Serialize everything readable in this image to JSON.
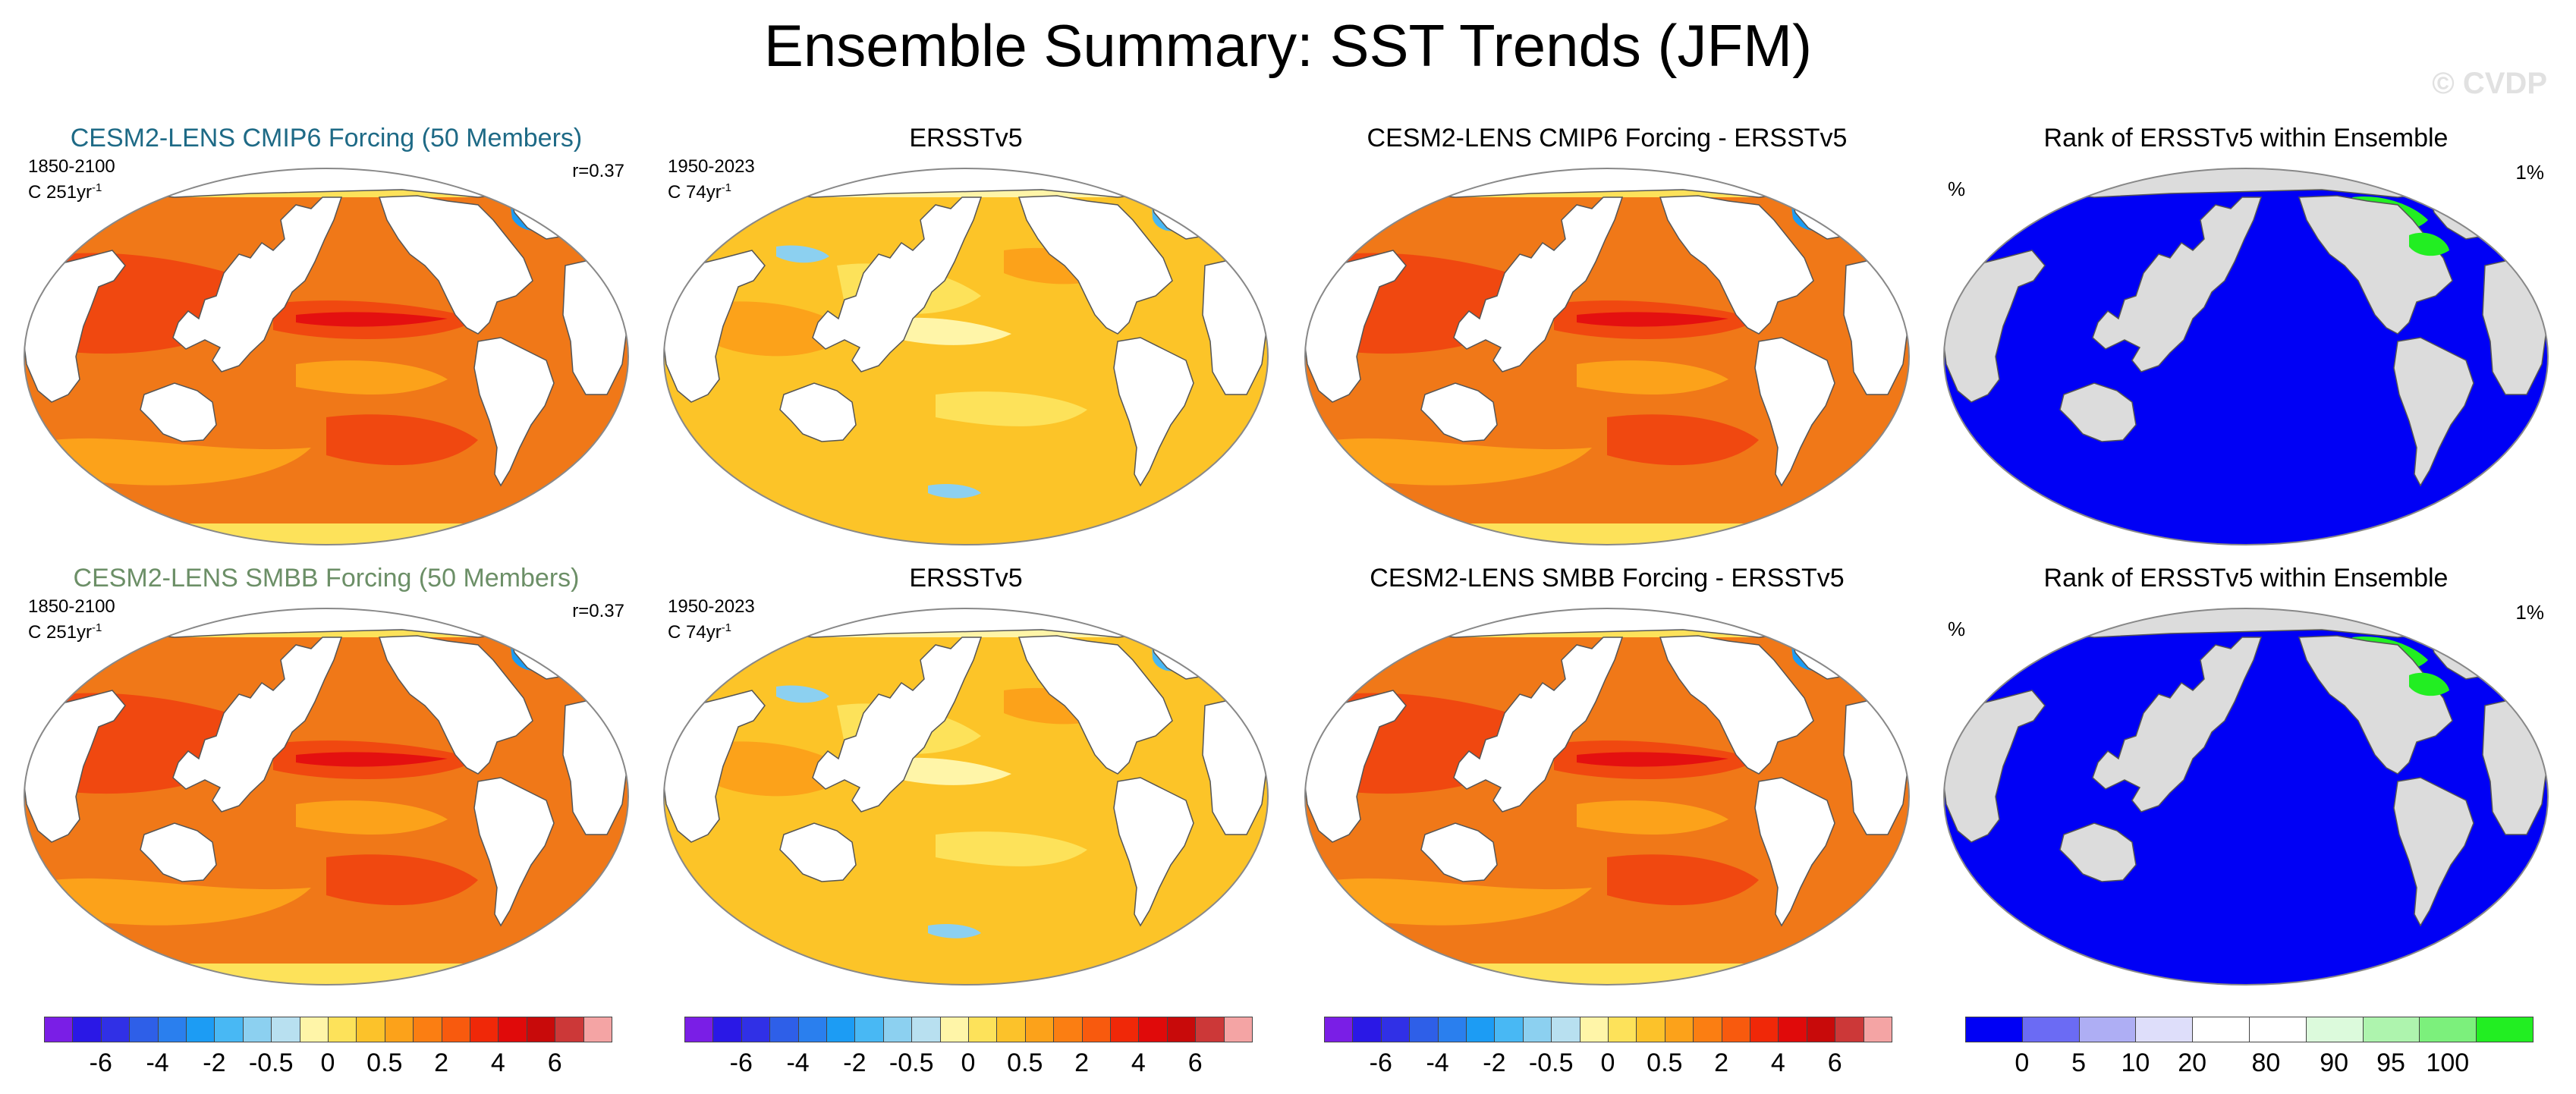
{
  "title": "Ensemble Summary: SST Trends (JFM)",
  "watermark": "© CVDP",
  "colors": {
    "cmip6_title": "#1e6a86",
    "smbb_title": "#6c8f67",
    "land": "#ffffff",
    "rank_land": "#dcdcdc",
    "rank_ocean": "#0000f5",
    "rank_high": "#22ee22"
  },
  "panels": [
    {
      "id": "cmip6-ens",
      "title": "CESM2-LENS CMIP6 Forcing (50 Members)",
      "years": "1850-2100",
      "units": "C 251yr",
      "sup": "-1",
      "r": "r=0.37",
      "kind": "warm"
    },
    {
      "id": "ersst-1",
      "title": "ERSSTv5",
      "years": "1950-2023",
      "units": "C 74yr",
      "sup": "-1",
      "kind": "obs"
    },
    {
      "id": "cmip6-diff",
      "title": "CESM2-LENS CMIP6 Forcing - ERSSTv5",
      "kind": "warm"
    },
    {
      "id": "rank-1",
      "title": "Rank of ERSSTv5 within Ensemble",
      "pct_left": "%",
      "pct_right": "1%",
      "kind": "rank"
    },
    {
      "id": "smbb-ens",
      "title": "CESM2-LENS SMBB Forcing (50 Members)",
      "years": "1850-2100",
      "units": "C 251yr",
      "sup": "-1",
      "r": "r=0.37",
      "kind": "warm"
    },
    {
      "id": "ersst-2",
      "title": "ERSSTv5",
      "years": "1950-2023",
      "units": "C 74yr",
      "sup": "-1",
      "kind": "obs"
    },
    {
      "id": "smbb-diff",
      "title": "CESM2-LENS SMBB Forcing - ERSSTv5",
      "kind": "warm"
    },
    {
      "id": "rank-2",
      "title": "Rank of ERSSTv5 within Ensemble",
      "pct_left": "%",
      "pct_right": "1%",
      "kind": "rank"
    }
  ],
  "trend_colorbar": {
    "colors": [
      "#7a1ee6",
      "#2a18e6",
      "#3030e6",
      "#2e5fe8",
      "#2a7fee",
      "#1c9cf4",
      "#48b8f4",
      "#8cd0f0",
      "#b8e0f0",
      "#fff5a8",
      "#fde25a",
      "#fcc22a",
      "#fca21a",
      "#fb7e12",
      "#f85a0e",
      "#f02808",
      "#e00a0a",
      "#c80a0a",
      "#cc3838",
      "#f4a4a4"
    ],
    "ticks": [
      "-6",
      "-4",
      "-2",
      "-0.5",
      "0",
      "0.5",
      "2",
      "4",
      "6"
    ]
  },
  "rank_colorbar": {
    "colors": [
      "#0000f5",
      "#6b6bf4",
      "#aeaef4",
      "#dedefa",
      "#ffffff",
      "#ffffff",
      "#dcfadc",
      "#aef4ae",
      "#7cf07c",
      "#22ee22"
    ],
    "ticks": [
      "0",
      "5",
      "10",
      "20",
      "80",
      "90",
      "95",
      "100"
    ]
  }
}
